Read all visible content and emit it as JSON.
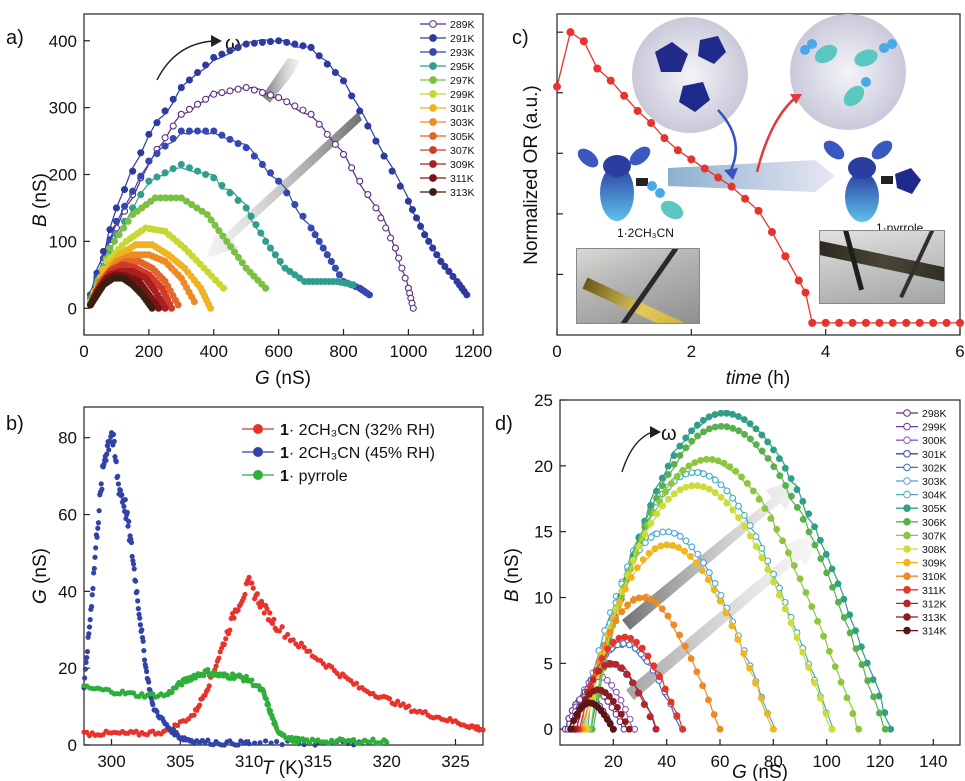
{
  "chart_data": [
    {
      "panel_label": "a)",
      "type": "scatter",
      "xlabel_italic": "G",
      "xlabel_unit": " (nS)",
      "ylabel_italic": "B",
      "ylabel_unit": " (nS)",
      "xlim": [
        0,
        1230
      ],
      "ylim": [
        -40,
        440
      ],
      "xticks": [
        0,
        200,
        400,
        600,
        800,
        1000,
        1200
      ],
      "yticks": [
        0,
        100,
        200,
        300,
        400
      ],
      "arrow_label": "ω",
      "series": [
        {
          "name": "289K",
          "color": "#5a2d82",
          "open": true,
          "x": [
            20,
            100,
            200,
            300,
            400,
            500,
            600,
            700,
            800,
            900,
            960,
            1000,
            1015
          ],
          "y": [
            20,
            120,
            220,
            290,
            320,
            330,
            315,
            290,
            230,
            150,
            90,
            30,
            0
          ]
        },
        {
          "name": "291K",
          "color": "#2e3a9e",
          "open": false,
          "x": [
            20,
            100,
            200,
            300,
            400,
            500,
            600,
            700,
            800,
            900,
            1000,
            1050,
            1100,
            1150,
            1180
          ],
          "y": [
            20,
            150,
            260,
            330,
            375,
            395,
            400,
            390,
            340,
            250,
            160,
            110,
            70,
            40,
            20
          ]
        },
        {
          "name": "293K",
          "color": "#3448b0",
          "open": false,
          "x": [
            20,
            100,
            200,
            300,
            400,
            500,
            600,
            700,
            750,
            800,
            850,
            880
          ],
          "y": [
            20,
            130,
            220,
            265,
            265,
            240,
            190,
            120,
            80,
            40,
            30,
            20
          ]
        },
        {
          "name": "295K",
          "color": "#2f9e8f",
          "open": false,
          "x": [
            20,
            100,
            200,
            300,
            400,
            500,
            560,
            620,
            680,
            730,
            780,
            830
          ],
          "y": [
            15,
            110,
            190,
            215,
            195,
            150,
            100,
            60,
            40,
            40,
            40,
            35
          ]
        },
        {
          "name": "297K",
          "color": "#7ac142",
          "open": false,
          "x": [
            20,
            80,
            150,
            220,
            300,
            380,
            440,
            500,
            560
          ],
          "y": [
            10,
            90,
            140,
            165,
            165,
            140,
            100,
            60,
            30
          ]
        },
        {
          "name": "299K",
          "color": "#c8d832",
          "open": false,
          "x": [
            20,
            70,
            130,
            190,
            250,
            310,
            370,
            430
          ],
          "y": [
            10,
            70,
            100,
            120,
            115,
            90,
            60,
            30
          ]
        },
        {
          "name": "301K",
          "color": "#f0b321",
          "open": false,
          "x": [
            20,
            60,
            110,
            160,
            210,
            260,
            310,
            360,
            390
          ],
          "y": [
            5,
            55,
            80,
            95,
            95,
            80,
            60,
            30,
            0
          ]
        },
        {
          "name": "303K",
          "color": "#ee8a22",
          "open": false,
          "x": [
            20,
            60,
            100,
            150,
            200,
            250,
            300,
            340
          ],
          "y": [
            5,
            45,
            70,
            80,
            80,
            70,
            45,
            10
          ]
        },
        {
          "name": "305K",
          "color": "#e3662a",
          "open": false,
          "x": [
            20,
            50,
            90,
            130,
            170,
            210,
            250,
            290
          ],
          "y": [
            5,
            40,
            60,
            70,
            70,
            60,
            40,
            5
          ]
        },
        {
          "name": "307K",
          "color": "#cf3a2a",
          "open": false,
          "x": [
            20,
            50,
            80,
            120,
            160,
            200,
            240,
            270
          ],
          "y": [
            5,
            35,
            55,
            65,
            60,
            50,
            30,
            0
          ]
        },
        {
          "name": "309K",
          "color": "#a8201f",
          "open": false,
          "x": [
            20,
            50,
            80,
            110,
            150,
            190,
            220,
            250
          ],
          "y": [
            5,
            30,
            50,
            55,
            55,
            45,
            25,
            0
          ]
        },
        {
          "name": "311K",
          "color": "#7a1414",
          "open": false,
          "x": [
            20,
            40,
            70,
            100,
            130,
            170,
            200,
            230
          ],
          "y": [
            5,
            25,
            45,
            50,
            48,
            40,
            20,
            0
          ]
        },
        {
          "name": "313K",
          "color": "#3a1e10",
          "open": false,
          "x": [
            20,
            40,
            60,
            90,
            120,
            150,
            180,
            210
          ],
          "y": [
            5,
            20,
            35,
            45,
            45,
            35,
            20,
            0
          ]
        }
      ]
    },
    {
      "panel_label": "b)",
      "type": "scatter",
      "xlabel_italic": "T",
      "xlabel_unit": " (K)",
      "ylabel_italic": "G",
      "ylabel_unit": " (nS)",
      "xlim": [
        298,
        327
      ],
      "ylim": [
        0,
        88
      ],
      "xticks": [
        300,
        305,
        310,
        315,
        320,
        325
      ],
      "yticks": [
        0,
        20,
        40,
        60,
        80
      ],
      "series": [
        {
          "name_bold": "1",
          "name": "· 2CH₃CN (32% RH)",
          "color": "#e8322b",
          "x": [
            298,
            300,
            302,
            304,
            306,
            307,
            308,
            309,
            310,
            311,
            312,
            314,
            316,
            318,
            320,
            322,
            324,
            326,
            327
          ],
          "y": [
            3,
            3,
            3,
            3.5,
            8,
            15,
            25,
            35,
            42,
            36,
            31,
            25,
            20,
            15,
            12,
            9,
            7,
            5,
            4
          ]
        },
        {
          "name_bold": "1",
          "name": "· 2CH₃CN (45% RH)",
          "color": "#3143a8",
          "x": [
            298,
            298.5,
            299,
            299.5,
            300,
            300.5,
            301,
            301.5,
            302,
            302.5,
            303,
            304,
            305,
            306,
            308,
            310,
            314,
            318
          ],
          "y": [
            15,
            35,
            58,
            75,
            82,
            68,
            62,
            50,
            35,
            20,
            10,
            5,
            2,
            1,
            0.5,
            0.5,
            0.5,
            0.5
          ]
        },
        {
          "name_bold": "1",
          "name": "· pyrrole",
          "color": "#2fae3a",
          "x": [
            298,
            300,
            302,
            304,
            305,
            306,
            307,
            308,
            309,
            310,
            311,
            311.5,
            312,
            313,
            314,
            316,
            318,
            320
          ],
          "y": [
            15,
            14,
            13,
            13,
            16,
            18,
            19,
            18,
            18,
            17,
            14,
            9,
            4,
            1.5,
            1,
            1,
            1,
            1
          ]
        }
      ]
    },
    {
      "panel_label": "c)",
      "type": "line",
      "xlabel_italic": "time",
      "xlabel_unit": " (h)",
      "ylabel": "Normalized OR (a.u.)",
      "xlim": [
        0,
        6
      ],
      "ylim": [
        0,
        1.06
      ],
      "xticks": [
        0,
        2,
        4,
        6
      ],
      "color": "#e8322b",
      "x": [
        0,
        0.2,
        0.4,
        0.6,
        0.8,
        1.0,
        1.2,
        1.4,
        1.6,
        1.8,
        2.0,
        2.2,
        2.4,
        2.6,
        2.8,
        3.0,
        3.2,
        3.4,
        3.6,
        3.7,
        3.8,
        4.0,
        4.2,
        4.4,
        4.6,
        4.8,
        5.0,
        5.2,
        5.4,
        5.6,
        5.8,
        6.0
      ],
      "y": [
        0.82,
        1.0,
        0.97,
        0.88,
        0.84,
        0.79,
        0.74,
        0.7,
        0.65,
        0.61,
        0.58,
        0.55,
        0.52,
        0.49,
        0.45,
        0.41,
        0.34,
        0.26,
        0.18,
        0.14,
        0.04,
        0.04,
        0.04,
        0.04,
        0.04,
        0.04,
        0.04,
        0.04,
        0.04,
        0.04,
        0.04,
        0.04
      ],
      "annotations": {
        "label_left": "1·2CH₃CN",
        "label_right": "1·pyrrole"
      }
    },
    {
      "panel_label": "d)",
      "type": "scatter",
      "xlabel_italic": "G",
      "xlabel_unit": " (nS)",
      "ylabel_italic": "B",
      "ylabel_unit": " (nS)",
      "xlim": [
        0,
        150
      ],
      "ylim": [
        -1.2,
        25
      ],
      "xticks": [
        20,
        40,
        60,
        80,
        100,
        120,
        140
      ],
      "yticks": [
        0,
        5,
        10,
        15,
        20,
        25
      ],
      "arrow_label": "ω",
      "series": [
        {
          "name": "298K",
          "color": "#5a2d82",
          "open": true,
          "peak": 2.5,
          "xmin": 2,
          "xmax": 20
        },
        {
          "name": "299K",
          "color": "#6f3aa0",
          "open": true,
          "peak": 3.0,
          "xmin": 3,
          "xmax": 24
        },
        {
          "name": "300K",
          "color": "#8a5cc0",
          "open": true,
          "peak": 4.0,
          "xmin": 4,
          "xmax": 28
        },
        {
          "name": "301K",
          "color": "#3a4a9f",
          "open": true,
          "peak": 5.0,
          "xmin": 5,
          "xmax": 36
        },
        {
          "name": "302K",
          "color": "#3e6fc1",
          "open": true,
          "peak": 6.5,
          "xmin": 6,
          "xmax": 46
        },
        {
          "name": "303K",
          "color": "#4fa4d8",
          "open": true,
          "peak": 15.0,
          "xmin": 8,
          "xmax": 80
        },
        {
          "name": "304K",
          "color": "#3fb0b8",
          "open": true,
          "peak": 19.5,
          "xmin": 10,
          "xmax": 102
        },
        {
          "name": "305K",
          "color": "#2fa086",
          "open": false,
          "peak": 24.0,
          "xmin": 12,
          "xmax": 124
        },
        {
          "name": "306K",
          "color": "#5ab04e",
          "open": false,
          "peak": 23.0,
          "xmin": 12,
          "xmax": 122
        },
        {
          "name": "307K",
          "color": "#8cc63f",
          "open": false,
          "peak": 20.5,
          "xmin": 11,
          "xmax": 112
        },
        {
          "name": "308K",
          "color": "#cddc39",
          "open": false,
          "peak": 18.5,
          "xmin": 10,
          "xmax": 102
        },
        {
          "name": "309K",
          "color": "#f2b51f",
          "open": false,
          "peak": 14.0,
          "xmin": 9,
          "xmax": 80
        },
        {
          "name": "310K",
          "color": "#ee8a22",
          "open": false,
          "peak": 10.0,
          "xmin": 8,
          "xmax": 60
        },
        {
          "name": "311K",
          "color": "#e8322b",
          "open": false,
          "peak": 7.0,
          "xmin": 7,
          "xmax": 46
        },
        {
          "name": "312K",
          "color": "#b8262a",
          "open": false,
          "peak": 5.0,
          "xmin": 6,
          "xmax": 36
        },
        {
          "name": "313K",
          "color": "#8a1c1c",
          "open": false,
          "peak": 3.0,
          "xmin": 5,
          "xmax": 26
        },
        {
          "name": "314K",
          "color": "#5a1414",
          "open": false,
          "peak": 2.0,
          "xmin": 4,
          "xmax": 20
        }
      ]
    }
  ]
}
